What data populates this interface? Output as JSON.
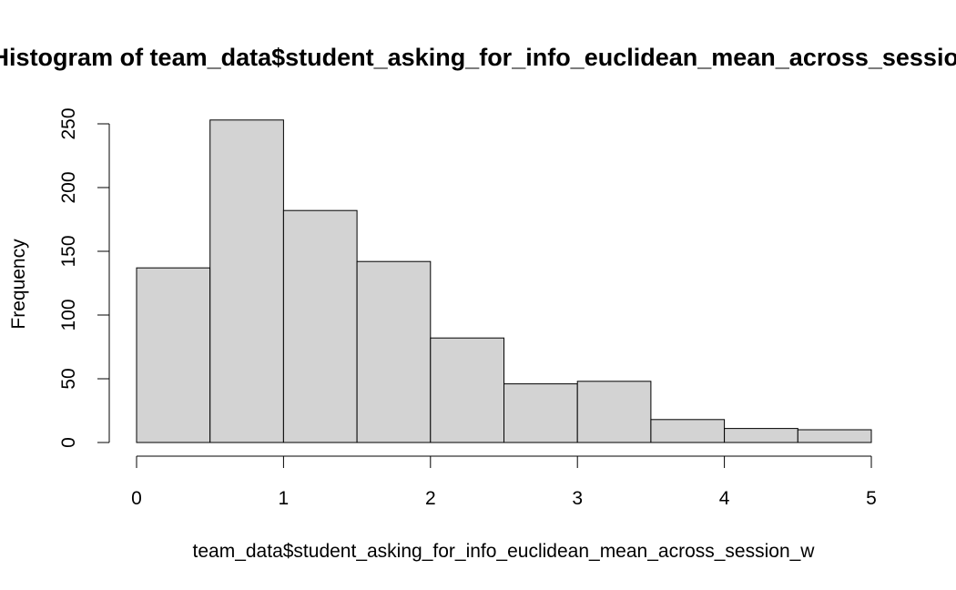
{
  "chart_data": {
    "type": "bar",
    "title": "Histogram of team_data$student_asking_for_info_euclidean_mean_across_session_w",
    "xlabel": "team_data$student_asking_for_info_euclidean_mean_across_session_w",
    "ylabel": "Frequency",
    "bins": [
      {
        "from": 0.0,
        "to": 0.5,
        "count": 137
      },
      {
        "from": 0.5,
        "to": 1.0,
        "count": 253
      },
      {
        "from": 1.0,
        "to": 1.5,
        "count": 182
      },
      {
        "from": 1.5,
        "to": 2.0,
        "count": 142
      },
      {
        "from": 2.0,
        "to": 2.5,
        "count": 82
      },
      {
        "from": 2.5,
        "to": 3.0,
        "count": 46
      },
      {
        "from": 3.0,
        "to": 3.5,
        "count": 48
      },
      {
        "from": 3.5,
        "to": 4.0,
        "count": 18
      },
      {
        "from": 4.0,
        "to": 4.5,
        "count": 11
      },
      {
        "from": 4.5,
        "to": 5.0,
        "count": 10
      }
    ],
    "xlim": [
      0,
      5
    ],
    "ylim": [
      0,
      250
    ],
    "x_ticks": [
      "0",
      "1",
      "2",
      "3",
      "4",
      "5"
    ],
    "y_ticks": [
      "0",
      "50",
      "100",
      "150",
      "200",
      "250"
    ],
    "colors": {
      "bar_fill": "#d3d3d3",
      "bar_stroke": "#000000"
    },
    "grid": false,
    "legend": "none"
  }
}
